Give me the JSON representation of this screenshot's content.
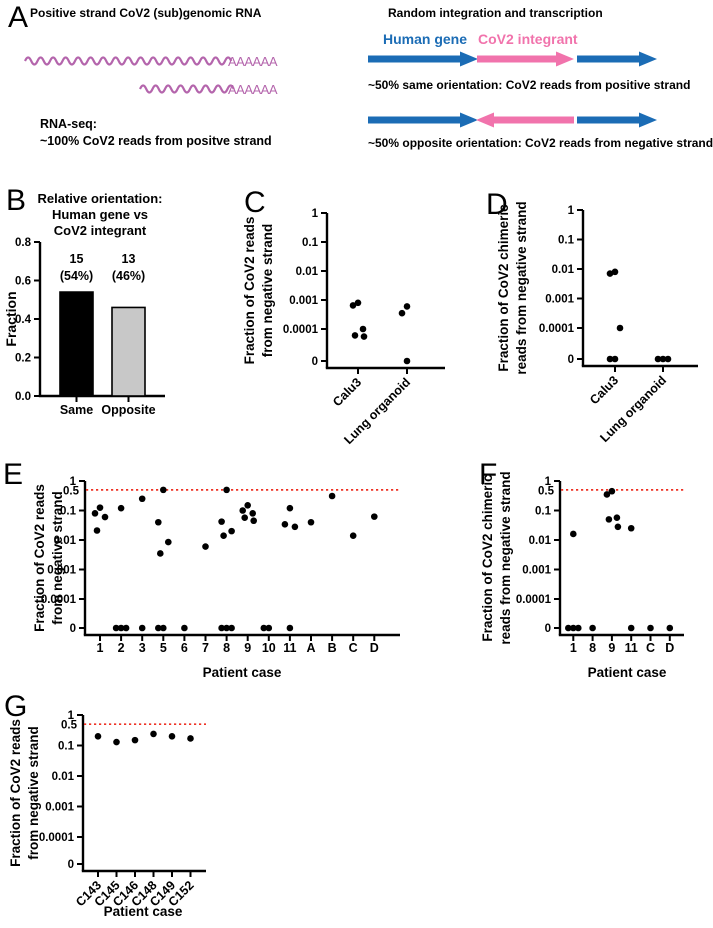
{
  "panels": {
    "A": "A",
    "B": "B",
    "C": "C",
    "D": "D",
    "E": "E",
    "F": "F",
    "G": "G"
  },
  "colors": {
    "blue": "#1b6cb5",
    "pink": "#f173ac",
    "purple": "#b465ac",
    "red": "#ee3124",
    "bar_black": "#000000",
    "bar_gray": "#c8c8c8"
  },
  "panel_a": {
    "left_title": "Positive strand CoV2 (sub)genomic RNA",
    "polyA": "AAAAAA",
    "rna_seq_line1": "RNA-seq:",
    "rna_seq_line2": "~100% CoV2 reads from positve strand",
    "right_title": "Random integration and transcription",
    "human_gene_label": "Human gene",
    "cov2_integrant_label": "CoV2 integrant",
    "same_text": "~50% same orientation: CoV2 reads from positive strand",
    "opposite_text": "~50% opposite orientation: CoV2 reads from negative strand"
  },
  "chart_data": [
    {
      "id": "B",
      "type": "bar",
      "title_lines": [
        "Relative orientation:",
        "Human gene vs",
        "CoV2 integrant"
      ],
      "ylabel": "Fraction",
      "yticks": [
        "0.0",
        "0.2",
        "0.4",
        "0.6",
        "0.8"
      ],
      "ylim": [
        0,
        0.8
      ],
      "categories": [
        "Same",
        "Opposite"
      ],
      "values": [
        0.54,
        0.46
      ],
      "bar_labels": [
        [
          "15",
          "(54%)"
        ],
        [
          "13",
          "(46%)"
        ]
      ],
      "bar_colors": [
        "black",
        "gray"
      ]
    },
    {
      "id": "C",
      "type": "scatter",
      "ylabel_lines": [
        "Fraction of CoV2 reads",
        "from negative strand"
      ],
      "yticks": [
        "1",
        "0.1",
        "0.01",
        "0.001",
        "0.0001",
        "0"
      ],
      "red_line_at": null,
      "red_line_label": "",
      "xlabel": "",
      "categories": [
        "Calu3",
        "Lung organoid"
      ],
      "points": [
        [
          0.0008,
          0.00065,
          0.0001,
          6e-05,
          5.5e-05
        ],
        [
          0.0006,
          0.00035,
          0
        ]
      ]
    },
    {
      "id": "D",
      "type": "scatter",
      "ylabel_lines": [
        "Fraction of CoV2 chimeric",
        "reads from negative strand"
      ],
      "yticks": [
        "1",
        "0.1",
        "0.01",
        "0.001",
        "0.0001",
        "0"
      ],
      "red_line_at": null,
      "red_line_label": "",
      "xlabel": "",
      "categories": [
        "Calu3",
        "Lung organoid"
      ],
      "points": [
        [
          0.008,
          0.007,
          0.0001,
          0,
          0
        ],
        [
          0,
          0,
          0
        ]
      ]
    },
    {
      "id": "E",
      "type": "scatter",
      "ylabel_lines": [
        "Fraction of CoV2 reads",
        "from negative strand"
      ],
      "yticks": [
        "1",
        "0.1",
        "0.01",
        "0.001",
        "0.0001",
        "0"
      ],
      "red_line_at": 0.5,
      "red_line_label": "0.5",
      "xlabel": "Patient case",
      "categories": [
        "1",
        "2",
        "3",
        "5",
        "6",
        "7",
        "8",
        "9",
        "10",
        "11",
        "A",
        "B",
        "C",
        "D"
      ],
      "points": [
        [
          0.125,
          0.08,
          0.06,
          0.021
        ],
        [
          0.12,
          0,
          0,
          0
        ],
        [
          0.25,
          0
        ],
        [
          0.5,
          0.04,
          0.0085,
          0.0035,
          0,
          0
        ],
        [
          0
        ],
        [
          0.006
        ],
        [
          0.5,
          0.042,
          0.02,
          0.014,
          0,
          0,
          0
        ],
        [
          0.15,
          0.1,
          0.08,
          0.057,
          0.045
        ],
        [
          0,
          0
        ],
        [
          0.12,
          0.034,
          0.028,
          0
        ],
        [
          0.04
        ],
        [
          0.31
        ],
        [
          0.014
        ],
        [
          0.062
        ]
      ]
    },
    {
      "id": "F",
      "type": "scatter",
      "ylabel_lines": [
        "Fraction of CoV2 chimeric",
        "reads from negative strand"
      ],
      "yticks": [
        "1",
        "0.1",
        "0.01",
        "0.001",
        "0.0001",
        "0"
      ],
      "red_line_at": 0.5,
      "red_line_label": "0.5",
      "xlabel": "Patient case",
      "categories": [
        "1",
        "8",
        "9",
        "11",
        "C",
        "D"
      ],
      "points": [
        [
          0.016,
          0,
          0,
          0
        ],
        [
          0
        ],
        [
          0.45,
          0.35,
          0.057,
          0.05,
          0.028
        ],
        [
          0.025,
          0
        ],
        [
          0
        ],
        [
          0
        ]
      ]
    },
    {
      "id": "G",
      "type": "scatter",
      "ylabel_lines": [
        "Fraction of CoV2 reads",
        "from negative strand"
      ],
      "yticks": [
        "1",
        "0.1",
        "0.01",
        "0.001",
        "0.0001",
        "0"
      ],
      "red_line_at": 0.5,
      "red_line_label": "0.5",
      "xlabel": "Patient case",
      "categories": [
        "C143",
        "C145",
        "C146",
        "C148",
        "C149",
        "C152"
      ],
      "points": [
        [
          0.2
        ],
        [
          0.13
        ],
        [
          0.15
        ],
        [
          0.24
        ],
        [
          0.2
        ],
        [
          0.17
        ]
      ]
    }
  ]
}
